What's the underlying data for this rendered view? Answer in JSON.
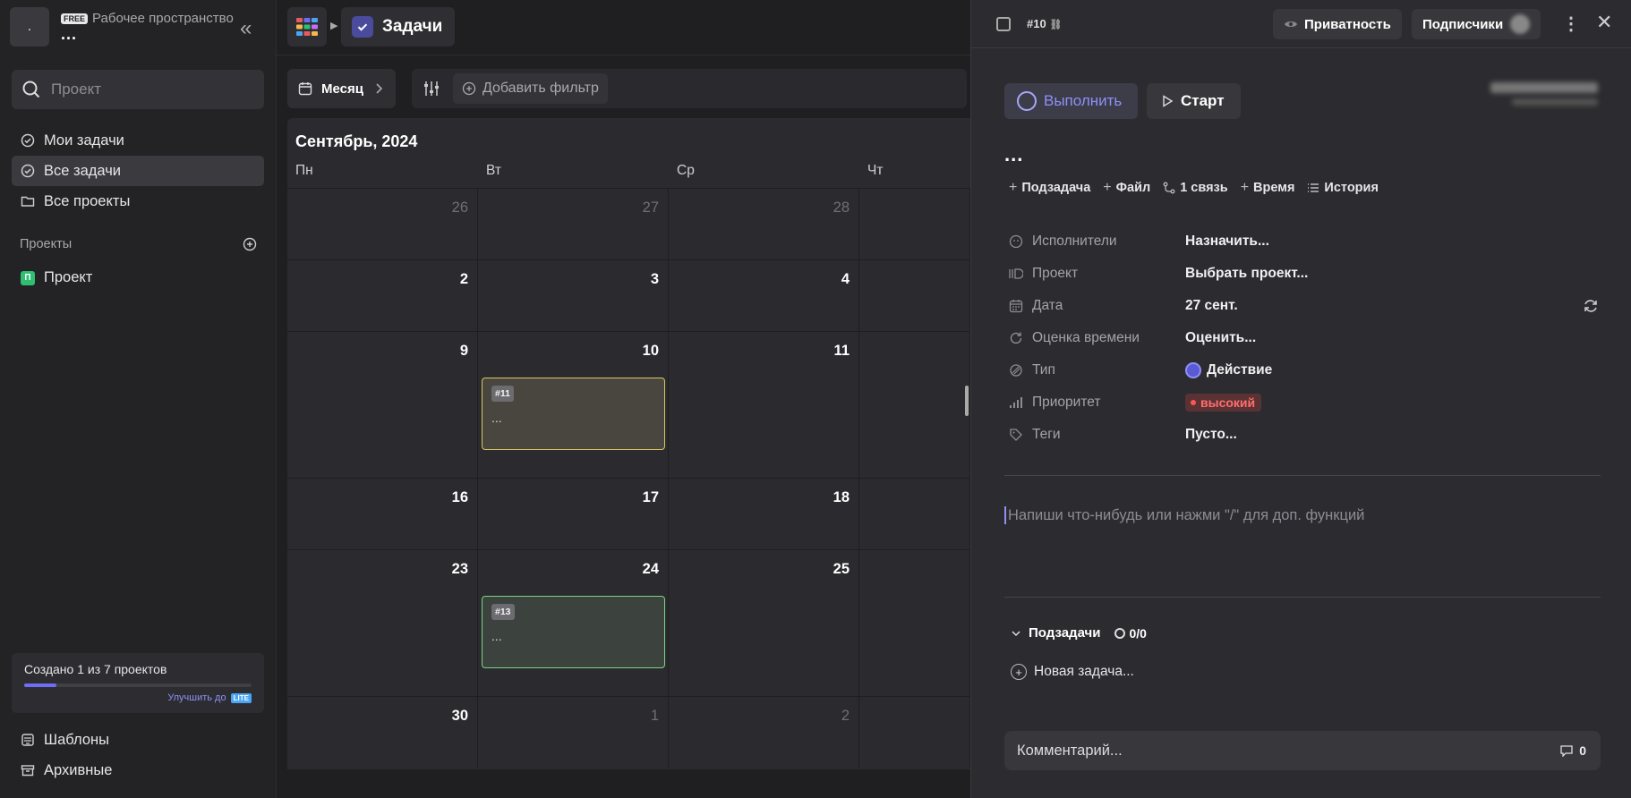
{
  "workspace": {
    "avatar_initial": ".",
    "plan_badge": "FREE",
    "label": "Рабочее пространство",
    "name": "..."
  },
  "sidebar": {
    "search_placeholder": "Проект",
    "items": [
      {
        "label": "Мои задачи",
        "icon": "task-check-icon"
      },
      {
        "label": "Все задачи",
        "icon": "task-check-icon",
        "active": true
      },
      {
        "label": "Все проекты",
        "icon": "folder-icon"
      }
    ],
    "projects_heading": "Проекты",
    "projects": [
      {
        "badge": "П",
        "label": "Проект",
        "color": "#2fbf71"
      }
    ],
    "usage": {
      "text": "Создано 1 из 7 проектов",
      "progress": 0.14,
      "upgrade_label": "Улучшить до",
      "upgrade_badge": "LITE"
    },
    "bottom_items": [
      {
        "label": "Шаблоны",
        "icon": "templates-icon"
      },
      {
        "label": "Архивные",
        "icon": "archive-icon"
      }
    ]
  },
  "header": {
    "breadcrumb_title": "Задачи"
  },
  "toolbar": {
    "view_label": "Месяц",
    "add_filter_label": "Добавить фильтр"
  },
  "calendar": {
    "title": "Сентябрь, 2024",
    "weekdays": [
      "Пн",
      "Вт",
      "Ср",
      "Чт"
    ],
    "weeks": [
      {
        "days": [
          {
            "n": "26",
            "dim": true
          },
          {
            "n": "27",
            "dim": true
          },
          {
            "n": "28",
            "dim": true
          },
          {
            "n": "",
            "dim": true
          }
        ]
      },
      {
        "days": [
          {
            "n": "2"
          },
          {
            "n": "3"
          },
          {
            "n": "4"
          },
          {
            "n": ""
          }
        ]
      },
      {
        "days": [
          {
            "n": "9"
          },
          {
            "n": "10",
            "task": {
              "id": "#11",
              "title": "...",
              "style": "yellow"
            }
          },
          {
            "n": "11"
          },
          {
            "n": ""
          }
        ]
      },
      {
        "days": [
          {
            "n": "16"
          },
          {
            "n": "17"
          },
          {
            "n": "18"
          },
          {
            "n": ""
          }
        ]
      },
      {
        "days": [
          {
            "n": "23"
          },
          {
            "n": "24",
            "task": {
              "id": "#13",
              "title": "...",
              "style": "green"
            }
          },
          {
            "n": "25"
          },
          {
            "n": ""
          }
        ]
      },
      {
        "days": [
          {
            "n": "30"
          },
          {
            "n": "1",
            "dim": true
          },
          {
            "n": "2",
            "dim": true
          },
          {
            "n": ""
          }
        ]
      }
    ]
  },
  "task_panel": {
    "id_label": "#10",
    "privacy_label": "Приватность",
    "subscribers_label": "Подписчики",
    "complete_label": "Выполнить",
    "start_label": "Старт",
    "title": "...",
    "actions": [
      {
        "label": "Подзадача",
        "icon": "plus-icon"
      },
      {
        "label": "Файл",
        "icon": "plus-icon"
      },
      {
        "label": "1 связь",
        "icon": "link-icon"
      },
      {
        "label": "Время",
        "icon": "plus-icon"
      },
      {
        "label": "История",
        "icon": "list-icon"
      }
    ],
    "properties": [
      {
        "label": "Исполнители",
        "value": "Назначить...",
        "icon": "assignee-icon"
      },
      {
        "label": "Проект",
        "value": "Выбрать проект...",
        "icon": "project-icon"
      },
      {
        "label": "Дата",
        "value": "27 сент.",
        "icon": "calendar-icon"
      },
      {
        "label": "Оценка времени",
        "value": "Оценить...",
        "icon": "refresh-icon"
      },
      {
        "label": "Тип",
        "value": "Действие",
        "icon": "type-icon"
      },
      {
        "label": "Приоритет",
        "value": "высокий",
        "icon": "priority-icon",
        "color": "#ff6e6e"
      },
      {
        "label": "Теги",
        "value": "Пусто...",
        "icon": "tag-icon"
      }
    ],
    "editor_placeholder": "Напиши что-нибудь или нажми \"/\" для доп. функций",
    "subtasks_label": "Подзадачи",
    "subtasks_count": "0/0",
    "new_task_label": "Новая задача...",
    "comment_placeholder": "Комментарий...",
    "comment_count": "0"
  }
}
